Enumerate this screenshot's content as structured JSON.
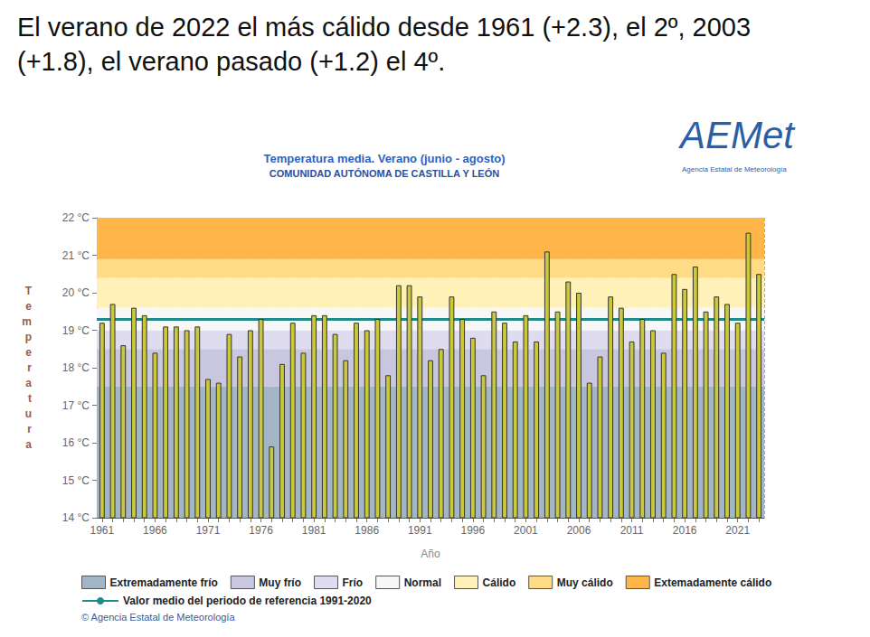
{
  "chart_data": {
    "type": "bar",
    "headline": "El verano de 2022 el más cálido desde 1961 (+2.3), el 2º, 2003 (+1.8), el verano pasado (+1.2) el 4º.",
    "title": "Temperatura media. Verano (junio - agosto)",
    "subtitle": "COMUNIDAD AUTÓNOMA DE CASTILLA Y LEÓN",
    "x_label": "Año",
    "y_label": "Temperatura",
    "categories": [
      "1961",
      null,
      null,
      null,
      null,
      "1966",
      null,
      null,
      null,
      null,
      "1971",
      null,
      null,
      null,
      null,
      "1976",
      null,
      null,
      null,
      null,
      "1981",
      null,
      null,
      null,
      null,
      "1986",
      null,
      null,
      null,
      null,
      "1991",
      null,
      null,
      null,
      null,
      "1996",
      null,
      null,
      null,
      null,
      "2001",
      null,
      null,
      null,
      null,
      "2006",
      null,
      null,
      null,
      null,
      "2011",
      null,
      null,
      null,
      null,
      "2016",
      null,
      null,
      null,
      null,
      "2021",
      null,
      null
    ],
    "values": [
      19.2,
      19.7,
      18.6,
      19.6,
      19.4,
      18.4,
      19.1,
      19.1,
      19.0,
      19.1,
      17.7,
      17.6,
      18.9,
      18.3,
      19.0,
      19.3,
      15.9,
      18.1,
      19.2,
      18.4,
      19.4,
      19.4,
      18.9,
      18.2,
      19.2,
      19.0,
      19.3,
      17.8,
      20.2,
      20.2,
      19.9,
      18.2,
      18.5,
      19.9,
      19.3,
      18.8,
      17.8,
      19.5,
      19.2,
      18.7,
      19.4,
      18.7,
      21.1,
      19.5,
      20.3,
      20.0,
      17.6,
      18.3,
      19.9,
      19.6,
      18.7,
      19.3,
      19.0,
      18.4,
      20.5,
      20.1,
      20.7,
      19.5,
      19.9,
      19.7,
      19.2,
      21.6,
      20.5
    ],
    "color": "#c9c93a",
    "ylim": [
      14,
      22
    ],
    "yticks": [
      {
        "value": 14,
        "label": "14 °C"
      },
      {
        "value": 15,
        "label": "15 °C"
      },
      {
        "value": 16,
        "label": "16 °C"
      },
      {
        "value": 17,
        "label": "17 °C"
      },
      {
        "value": 18,
        "label": "18 °C"
      },
      {
        "value": 19,
        "label": "19 °C"
      },
      {
        "value": 20,
        "label": "20 °C"
      },
      {
        "value": 21,
        "label": "21 °C"
      },
      {
        "value": 22,
        "label": "22 °C"
      }
    ],
    "grid": true,
    "bands": [
      {
        "name": "Extremadamente frío",
        "color": "#a3b6c8",
        "from": 14,
        "to": 17.5
      },
      {
        "name": "Muy frío",
        "color": "#c9c6e0",
        "from": 17.5,
        "to": 18.5
      },
      {
        "name": "Frío",
        "color": "#dedcee",
        "from": 18.5,
        "to": 19.0
      },
      {
        "name": "Normal",
        "color": "#f7f7f7",
        "from": 19.0,
        "to": 19.6
      },
      {
        "name": "Cálido",
        "color": "#fff1b8",
        "from": 19.6,
        "to": 20.4
      },
      {
        "name": "Muy cálido",
        "color": "#ffdb85",
        "from": 20.4,
        "to": 20.9
      },
      {
        "name": "Extemadamente cálido",
        "color": "#ffb648",
        "from": 20.9,
        "to": 22
      }
    ],
    "reference": {
      "name": "Valor medio del periodo de referencia 1991-2020",
      "value": 19.3,
      "color": "#1f8a8a"
    },
    "logo": {
      "text": "AEMet",
      "caption": "Agencia Estatal de Meteorología"
    },
    "source": "© Agencia Estatal de Meteorología"
  }
}
